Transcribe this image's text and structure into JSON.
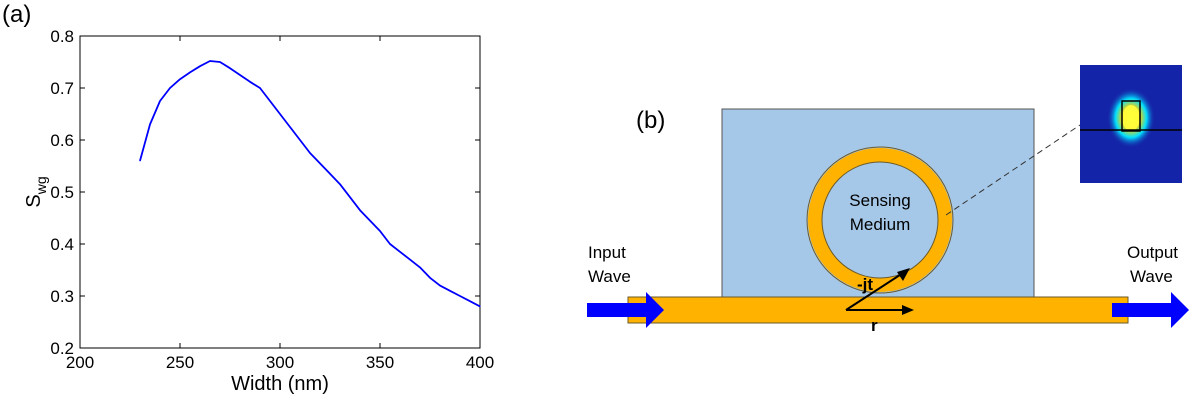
{
  "panel_a": {
    "label": "(a)"
  },
  "panel_b": {
    "label": "(b)",
    "sensing_line1": "Sensing",
    "sensing_line2": "Medium",
    "input_line1": "Input",
    "input_line2": "Wave",
    "output_line1": "Output",
    "output_line2": "Wave",
    "coupling_label": "-jt",
    "through_label": "r",
    "colors": {
      "cladding": "#a6c8e8",
      "waveguide": "#ffb300",
      "arrow": "#0000ff",
      "mode_bg": "#1424a8"
    },
    "icons": [
      "input-wave-arrow",
      "output-wave-arrow",
      "mode-profile-image"
    ]
  },
  "chart_data": {
    "type": "line",
    "title": "",
    "xlabel": "Width (nm)",
    "ylabel_main": "S",
    "ylabel_sub": "wg",
    "xlim": [
      200,
      400
    ],
    "ylim": [
      0.2,
      0.8
    ],
    "xticks": [
      "200",
      "250",
      "300",
      "350",
      "400"
    ],
    "yticks": [
      "0.2",
      "0.3",
      "0.4",
      "0.5",
      "0.6",
      "0.7",
      "0.8"
    ],
    "grid": false,
    "line_color": "#0000ff",
    "series": [
      {
        "x": [
          230,
          235,
          240,
          245,
          250,
          255,
          260,
          265,
          270,
          275,
          280,
          285,
          290,
          295,
          300,
          305,
          310,
          315,
          320,
          325,
          330,
          335,
          340,
          345,
          350,
          355,
          360,
          365,
          370,
          375,
          380,
          385,
          390,
          395,
          400
        ],
        "y": [
          0.56,
          0.63,
          0.675,
          0.7,
          0.717,
          0.73,
          0.742,
          0.752,
          0.75,
          0.738,
          0.725,
          0.712,
          0.7,
          0.675,
          0.65,
          0.625,
          0.6,
          0.575,
          0.555,
          0.535,
          0.515,
          0.49,
          0.465,
          0.445,
          0.425,
          0.4,
          0.385,
          0.37,
          0.355,
          0.335,
          0.32,
          0.31,
          0.3,
          0.29,
          0.28
        ]
      }
    ]
  }
}
